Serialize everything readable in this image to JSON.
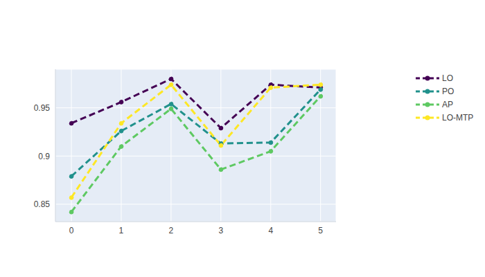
{
  "chart_data": {
    "type": "line",
    "x": [
      0,
      1,
      2,
      3,
      4,
      5
    ],
    "series": [
      {
        "name": "LO",
        "color": "#440154",
        "values": [
          0.934,
          0.956,
          0.98,
          0.929,
          0.974,
          0.971
        ]
      },
      {
        "name": "PO",
        "color": "#21918c",
        "values": [
          0.879,
          0.926,
          0.954,
          0.913,
          0.914,
          0.969
        ]
      },
      {
        "name": "AP",
        "color": "#5ec962",
        "values": [
          0.842,
          0.91,
          0.949,
          0.886,
          0.905,
          0.962
        ]
      },
      {
        "name": "LO-MTP",
        "color": "#fde725",
        "values": [
          0.857,
          0.934,
          0.974,
          0.911,
          0.971,
          0.974
        ]
      }
    ],
    "xlim": [
      -0.32,
      5.31
    ],
    "xticks": [
      0,
      1,
      2,
      3,
      4,
      5
    ],
    "ylim": [
      0.832,
      0.99
    ],
    "yticks": [
      0.85,
      0.9,
      0.95
    ],
    "grid": true,
    "legend": "right",
    "line_style": "dashed",
    "marker": "circle"
  }
}
